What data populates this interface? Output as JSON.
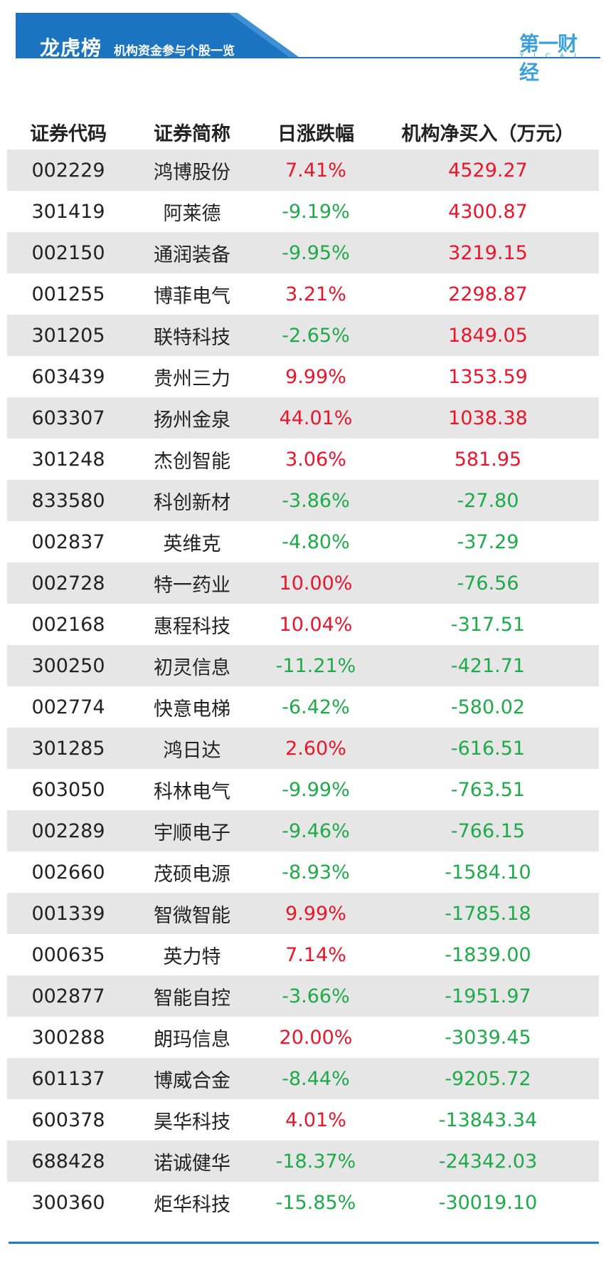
{
  "banner": {
    "title": "龙虎榜",
    "subtitle": "机构资金参与个股一览",
    "colors": {
      "banner": "#1c74c0",
      "accent": "#3aa0dc"
    }
  },
  "brand": {
    "name": "第一财经",
    "sub": "YICAI"
  },
  "table": {
    "headers": [
      "证券代码",
      "证券简称",
      "日涨跌幅",
      "机构净买入（万元）"
    ],
    "rows": [
      {
        "code": "002229",
        "name": "鸿博股份",
        "change": "7.41%",
        "net": "4529.27"
      },
      {
        "code": "301419",
        "name": "阿莱德",
        "change": "-9.19%",
        "net": "4300.87"
      },
      {
        "code": "002150",
        "name": "通润装备",
        "change": "-9.95%",
        "net": "3219.15"
      },
      {
        "code": "001255",
        "name": "博菲电气",
        "change": "3.21%",
        "net": "2298.87"
      },
      {
        "code": "301205",
        "name": "联特科技",
        "change": "-2.65%",
        "net": "1849.05"
      },
      {
        "code": "603439",
        "name": "贵州三力",
        "change": "9.99%",
        "net": "1353.59"
      },
      {
        "code": "603307",
        "name": "扬州金泉",
        "change": "44.01%",
        "net": "1038.38"
      },
      {
        "code": "301248",
        "name": "杰创智能",
        "change": "3.06%",
        "net": "581.95"
      },
      {
        "code": "833580",
        "name": "科创新材",
        "change": "-3.86%",
        "net": "-27.80"
      },
      {
        "code": "002837",
        "name": "英维克",
        "change": "-4.80%",
        "net": "-37.29"
      },
      {
        "code": "002728",
        "name": "特一药业",
        "change": "10.00%",
        "net": "-76.56"
      },
      {
        "code": "002168",
        "name": "惠程科技",
        "change": "10.04%",
        "net": "-317.51"
      },
      {
        "code": "300250",
        "name": "初灵信息",
        "change": "-11.21%",
        "net": "-421.71"
      },
      {
        "code": "002774",
        "name": "快意电梯",
        "change": "-6.42%",
        "net": "-580.02"
      },
      {
        "code": "301285",
        "name": "鸿日达",
        "change": "2.60%",
        "net": "-616.51"
      },
      {
        "code": "603050",
        "name": "科林电气",
        "change": "-9.99%",
        "net": "-763.51"
      },
      {
        "code": "002289",
        "name": "宇顺电子",
        "change": "-9.46%",
        "net": "-766.15"
      },
      {
        "code": "002660",
        "name": "茂硕电源",
        "change": "-8.93%",
        "net": "-1584.10"
      },
      {
        "code": "001339",
        "name": "智微智能",
        "change": "9.99%",
        "net": "-1785.18"
      },
      {
        "code": "000635",
        "name": "英力特",
        "change": "7.14%",
        "net": "-1839.00"
      },
      {
        "code": "002877",
        "name": "智能自控",
        "change": "-3.66%",
        "net": "-1951.97"
      },
      {
        "code": "300288",
        "name": "朗玛信息",
        "change": "20.00%",
        "net": "-3039.45"
      },
      {
        "code": "601137",
        "name": "博威合金",
        "change": "-8.44%",
        "net": "-9205.72"
      },
      {
        "code": "600378",
        "name": "昊华科技",
        "change": "4.01%",
        "net": "-13843.34"
      },
      {
        "code": "688428",
        "name": "诺诚健华",
        "change": "-18.37%",
        "net": "-24342.03"
      },
      {
        "code": "300360",
        "name": "炬华科技",
        "change": "-15.85%",
        "net": "-30019.10"
      }
    ]
  }
}
